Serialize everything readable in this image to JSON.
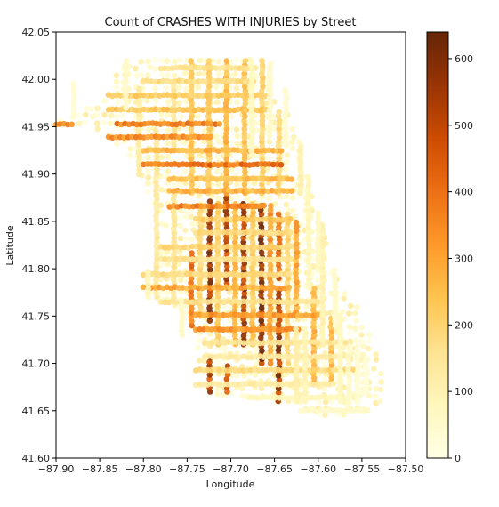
{
  "chart_data": {
    "type": "scatter",
    "title": "Count of CRASHES WITH INJURIES by Street",
    "xlabel": "Longitude",
    "ylabel": "Latitude",
    "xlim": [
      -87.9,
      -87.5
    ],
    "ylim": [
      41.6,
      42.05
    ],
    "xticks": [
      "−87.90",
      "−87.85",
      "−87.80",
      "−87.75",
      "−87.70",
      "−87.65",
      "−87.60",
      "−87.55",
      "−87.50"
    ],
    "yticks": [
      "41.60",
      "41.65",
      "41.70",
      "41.75",
      "41.80",
      "41.85",
      "41.90",
      "41.95",
      "42.00",
      "42.05"
    ],
    "grid": false,
    "colorbar": {
      "cmap": "YlOrBr",
      "range": [
        0,
        640
      ],
      "ticks": [
        "0",
        "100",
        "200",
        "300",
        "400",
        "500",
        "600"
      ],
      "colors": [
        "#ffffe5",
        "#fff7bc",
        "#fee391",
        "#fec44f",
        "#fe9929",
        "#ec7014",
        "#cc4c02",
        "#993404",
        "#662506"
      ]
    },
    "streets": [
      {
        "orientation": "vertical",
        "lon": -87.724,
        "lat": [
          41.745,
          41.875
        ],
        "count": 620
      },
      {
        "orientation": "vertical",
        "lon": -87.685,
        "lat": [
          41.72,
          41.87
        ],
        "count": 600
      },
      {
        "orientation": "vertical",
        "lon": -87.665,
        "lat": [
          41.7,
          41.87
        ],
        "count": 640
      },
      {
        "orientation": "vertical",
        "lon": -87.645,
        "lat": [
          41.66,
          41.78
        ],
        "count": 620
      },
      {
        "orientation": "vertical",
        "lon": -87.705,
        "lat": [
          41.78,
          41.88
        ],
        "count": 560
      },
      {
        "orientation": "vertical",
        "lon": -87.724,
        "lat": [
          41.67,
          41.71
        ],
        "count": 560
      },
      {
        "orientation": "vertical",
        "lon": -87.704,
        "lat": [
          41.67,
          41.7
        ],
        "count": 500
      },
      {
        "orientation": "vertical",
        "lon": -87.645,
        "lat": [
          41.79,
          41.86
        ],
        "count": 480
      },
      {
        "orientation": "vertical",
        "lon": -87.655,
        "lat": [
          41.7,
          41.87
        ],
        "count": 360
      },
      {
        "orientation": "vertical",
        "lon": -87.745,
        "lat": [
          41.74,
          41.82
        ],
        "count": 440
      },
      {
        "orientation": "vertical",
        "lon": -87.625,
        "lat": [
          41.75,
          41.85
        ],
        "count": 330
      },
      {
        "orientation": "vertical",
        "lon": -87.605,
        "lat": [
          41.68,
          41.78
        ],
        "count": 300
      },
      {
        "orientation": "vertical",
        "lon": -87.585,
        "lat": [
          41.68,
          41.75
        ],
        "count": 280
      },
      {
        "orientation": "vertical",
        "lon": -87.695,
        "lat": [
          41.72,
          41.87
        ],
        "count": 300
      },
      {
        "orientation": "vertical",
        "lon": -87.675,
        "lat": [
          41.72,
          41.87
        ],
        "count": 260
      },
      {
        "orientation": "vertical",
        "lon": -87.715,
        "lat": [
          41.72,
          41.87
        ],
        "count": 240
      },
      {
        "orientation": "vertical",
        "lon": -87.735,
        "lat": [
          41.75,
          41.87
        ],
        "count": 200
      },
      {
        "orientation": "vertical",
        "lon": -87.635,
        "lat": [
          41.7,
          41.86
        ],
        "count": 220
      },
      {
        "orientation": "vertical",
        "lon": -87.765,
        "lat": [
          41.77,
          41.88
        ],
        "count": 160
      },
      {
        "orientation": "vertical",
        "lon": -87.785,
        "lat": [
          41.77,
          41.95
        ],
        "count": 150
      },
      {
        "orientation": "vertical",
        "lon": -87.745,
        "lat": [
          41.88,
          42.02
        ],
        "count": 260
      },
      {
        "orientation": "vertical",
        "lon": -87.725,
        "lat": [
          41.88,
          42.02
        ],
        "count": 240
      },
      {
        "orientation": "vertical",
        "lon": -87.705,
        "lat": [
          41.88,
          42.02
        ],
        "count": 300
      },
      {
        "orientation": "vertical",
        "lon": -87.684,
        "lat": [
          41.88,
          42.02
        ],
        "count": 260
      },
      {
        "orientation": "vertical",
        "lon": -87.664,
        "lat": [
          41.88,
          42.02
        ],
        "count": 220
      },
      {
        "orientation": "vertical",
        "lon": -87.645,
        "lat": [
          41.88,
          41.97
        ],
        "count": 200
      },
      {
        "orientation": "vertical",
        "lon": -87.765,
        "lat": [
          41.93,
          42.0
        ],
        "count": 160
      },
      {
        "orientation": "vertical",
        "lon": -87.805,
        "lat": [
          41.9,
          41.99
        ],
        "count": 130
      },
      {
        "orientation": "horizontal",
        "lat": 41.953,
        "lon": [
          -87.83,
          -87.71
        ],
        "count": 420
      },
      {
        "orientation": "horizontal",
        "lat": 41.939,
        "lon": [
          -87.84,
          -87.72
        ],
        "count": 380
      },
      {
        "orientation": "horizontal",
        "lat": 41.91,
        "lon": [
          -87.8,
          -87.64
        ],
        "count": 440
      },
      {
        "orientation": "horizontal",
        "lat": 41.866,
        "lon": [
          -87.77,
          -87.66
        ],
        "count": 400
      },
      {
        "orientation": "horizontal",
        "lat": 41.882,
        "lon": [
          -87.77,
          -87.63
        ],
        "count": 300
      },
      {
        "orientation": "horizontal",
        "lat": 41.895,
        "lon": [
          -87.77,
          -87.63
        ],
        "count": 280
      },
      {
        "orientation": "horizontal",
        "lat": 41.925,
        "lon": [
          -87.8,
          -87.64
        ],
        "count": 300
      },
      {
        "orientation": "horizontal",
        "lat": 41.968,
        "lon": [
          -87.84,
          -87.66
        ],
        "count": 260
      },
      {
        "orientation": "horizontal",
        "lat": 41.983,
        "lon": [
          -87.84,
          -87.66
        ],
        "count": 240
      },
      {
        "orientation": "horizontal",
        "lat": 41.998,
        "lon": [
          -87.8,
          -87.67
        ],
        "count": 200
      },
      {
        "orientation": "horizontal",
        "lat": 42.012,
        "lon": [
          -87.78,
          -87.67
        ],
        "count": 180
      },
      {
        "orientation": "horizontal",
        "lat": 41.78,
        "lon": [
          -87.8,
          -87.63
        ],
        "count": 320
      },
      {
        "orientation": "horizontal",
        "lat": 41.751,
        "lon": [
          -87.74,
          -87.6
        ],
        "count": 340
      },
      {
        "orientation": "horizontal",
        "lat": 41.736,
        "lon": [
          -87.74,
          -87.62
        ],
        "count": 360
      },
      {
        "orientation": "horizontal",
        "lat": 41.794,
        "lon": [
          -87.8,
          -87.63
        ],
        "count": 200
      },
      {
        "orientation": "horizontal",
        "lat": 41.81,
        "lon": [
          -87.78,
          -87.63
        ],
        "count": 180
      },
      {
        "orientation": "horizontal",
        "lat": 41.823,
        "lon": [
          -87.78,
          -87.63
        ],
        "count": 220
      },
      {
        "orientation": "horizontal",
        "lat": 41.838,
        "lon": [
          -87.74,
          -87.63
        ],
        "count": 200
      },
      {
        "orientation": "horizontal",
        "lat": 41.852,
        "lon": [
          -87.74,
          -87.63
        ],
        "count": 240
      },
      {
        "orientation": "horizontal",
        "lat": 41.765,
        "lon": [
          -87.78,
          -87.6
        ],
        "count": 180
      },
      {
        "orientation": "horizontal",
        "lat": 41.722,
        "lon": [
          -87.73,
          -87.56
        ],
        "count": 160
      },
      {
        "orientation": "horizontal",
        "lat": 41.707,
        "lon": [
          -87.73,
          -87.56
        ],
        "count": 140
      },
      {
        "orientation": "horizontal",
        "lat": 41.693,
        "lon": [
          -87.74,
          -87.56
        ],
        "count": 200
      },
      {
        "orientation": "horizontal",
        "lat": 41.678,
        "lon": [
          -87.74,
          -87.58
        ],
        "count": 140
      },
      {
        "orientation": "horizontal",
        "lat": 41.664,
        "lon": [
          -87.68,
          -87.55
        ],
        "count": 90
      },
      {
        "orientation": "horizontal",
        "lat": 41.65,
        "lon": [
          -87.62,
          -87.54
        ],
        "count": 60
      },
      {
        "orientation": "horizontal",
        "lat": 41.953,
        "lon": [
          -87.9,
          -87.88
        ],
        "count": 400
      },
      {
        "orientation": "vertical",
        "lon": -87.611,
        "lat": [
          41.78,
          41.9
        ],
        "count": 90
      },
      {
        "orientation": "vertical",
        "lon": -87.62,
        "lat": [
          41.88,
          41.93
        ],
        "count": 120
      },
      {
        "orientation": "vertical",
        "lon": -87.595,
        "lat": [
          41.72,
          41.85
        ],
        "count": 110
      },
      {
        "orientation": "vertical",
        "lon": -87.575,
        "lat": [
          41.66,
          41.75
        ],
        "count": 80
      },
      {
        "orientation": "vertical",
        "lon": -87.565,
        "lat": [
          41.65,
          41.72
        ],
        "count": 60
      },
      {
        "orientation": "vertical",
        "lon": -87.555,
        "lat": [
          41.66,
          41.72
        ],
        "count": 40
      },
      {
        "orientation": "vertical",
        "lon": -87.545,
        "lat": [
          41.67,
          41.71
        ],
        "count": 30
      },
      {
        "orientation": "vertical",
        "lon": -87.625,
        "lat": [
          41.66,
          41.74
        ],
        "count": 120
      },
      {
        "orientation": "vertical",
        "lon": -87.615,
        "lat": [
          41.66,
          41.74
        ],
        "count": 100
      },
      {
        "orientation": "vertical",
        "lon": -87.676,
        "lat": [
          41.92,
          42.02
        ],
        "count": 80
      },
      {
        "orientation": "vertical",
        "lon": -87.655,
        "lat": [
          41.94,
          42.02
        ],
        "count": 60
      },
      {
        "orientation": "vertical",
        "lon": -87.637,
        "lat": [
          41.93,
          41.99
        ],
        "count": 50
      },
      {
        "orientation": "vertical",
        "lon": -87.82,
        "lat": [
          41.97,
          42.02
        ],
        "count": 60
      },
      {
        "orientation": "vertical",
        "lon": -87.88,
        "lat": [
          41.96,
          42.0
        ],
        "count": 40
      },
      {
        "orientation": "vertical",
        "lon": -87.581,
        "lat": [
          41.74,
          41.8
        ],
        "count": 60
      },
      {
        "orientation": "vertical",
        "lon": -87.6,
        "lat": [
          41.8,
          41.86
        ],
        "count": 70
      },
      {
        "orientation": "vertical",
        "lon": -87.756,
        "lat": [
          41.73,
          41.77
        ],
        "count": 70
      },
      {
        "orientation": "vertical",
        "lon": -87.795,
        "lat": [
          41.77,
          41.8
        ],
        "count": 90
      }
    ]
  }
}
